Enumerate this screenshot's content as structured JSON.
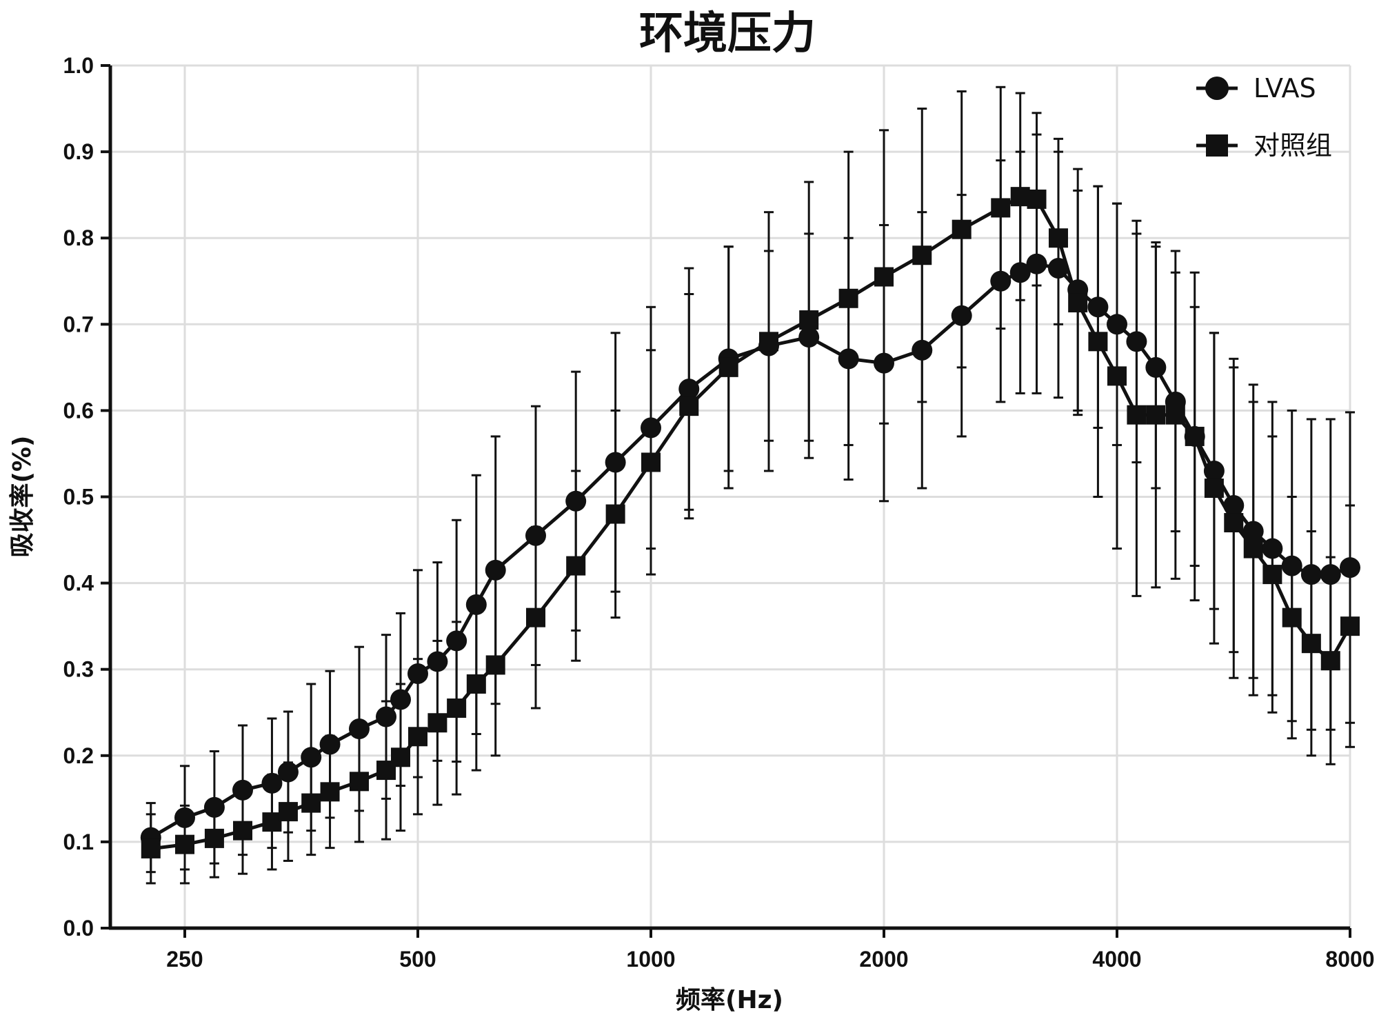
{
  "chart_data": {
    "type": "line",
    "title": "环境压力",
    "xlabel": "频率(Hz)",
    "ylabel": "吸收率(%)",
    "x_scale": "log2",
    "xlim": [
      220,
      8200
    ],
    "ylim": [
      0,
      1.0
    ],
    "x_ticks": [
      250,
      500,
      1000,
      2000,
      4000,
      8000
    ],
    "x_tick_labels": [
      "250",
      "500",
      "1000",
      "2000",
      "4000",
      "8000"
    ],
    "y_ticks": [
      0,
      0.1,
      0.2,
      0.3,
      0.4,
      0.5,
      0.6,
      0.7,
      0.8,
      0.9,
      1.0
    ],
    "y_tick_labels": [
      "0.0",
      "0.1",
      "0.2",
      "0.3",
      "0.4",
      "0.5",
      "0.6",
      "0.7",
      "0.8",
      "0.9",
      "1.0"
    ],
    "grid": true,
    "error_bars": true,
    "legend_position": "top-right",
    "series": [
      {
        "name": "LVAS",
        "marker": "circle",
        "color": "#111111",
        "x": [
          226,
          250,
          273,
          297,
          324,
          340,
          364,
          385,
          420,
          455,
          475,
          500,
          530,
          561,
          595,
          630,
          710,
          800,
          900,
          1000,
          1120,
          1260,
          1420,
          1600,
          1800,
          2000,
          2240,
          2520,
          2830,
          3000,
          3150,
          3360,
          3560,
          3780,
          4000,
          4240,
          4490,
          4760,
          5040,
          5340,
          5660,
          6000,
          6350,
          6730,
          7130,
          7550,
          8000
        ],
        "y": [
          0.105,
          0.128,
          0.14,
          0.16,
          0.168,
          0.181,
          0.198,
          0.213,
          0.231,
          0.245,
          0.265,
          0.295,
          0.309,
          0.333,
          0.375,
          0.415,
          0.455,
          0.495,
          0.54,
          0.58,
          0.625,
          0.66,
          0.675,
          0.685,
          0.66,
          0.655,
          0.67,
          0.71,
          0.75,
          0.76,
          0.77,
          0.765,
          0.74,
          0.72,
          0.7,
          0.68,
          0.65,
          0.61,
          0.57,
          0.53,
          0.49,
          0.46,
          0.44,
          0.42,
          0.41,
          0.41,
          0.418
        ],
        "error": [
          0.04,
          0.06,
          0.065,
          0.075,
          0.075,
          0.07,
          0.085,
          0.085,
          0.095,
          0.095,
          0.1,
          0.12,
          0.115,
          0.14,
          0.15,
          0.155,
          0.15,
          0.15,
          0.15,
          0.14,
          0.14,
          0.13,
          0.11,
          0.12,
          0.14,
          0.16,
          0.16,
          0.14,
          0.14,
          0.14,
          0.15,
          0.15,
          0.14,
          0.14,
          0.14,
          0.14,
          0.14,
          0.15,
          0.15,
          0.16,
          0.17,
          0.17,
          0.17,
          0.18,
          0.18,
          0.18,
          0.18
        ]
      },
      {
        "name": "对照组",
        "marker": "square",
        "color": "#111111",
        "x": [
          226,
          250,
          273,
          297,
          324,
          340,
          364,
          385,
          420,
          455,
          475,
          500,
          530,
          561,
          595,
          630,
          710,
          800,
          900,
          1000,
          1120,
          1260,
          1420,
          1600,
          1800,
          2000,
          2240,
          2520,
          2830,
          3000,
          3150,
          3360,
          3560,
          3780,
          4000,
          4240,
          4490,
          4760,
          5040,
          5340,
          5660,
          6000,
          6350,
          6730,
          7130,
          7550,
          8000
        ],
        "y": [
          0.092,
          0.097,
          0.104,
          0.113,
          0.123,
          0.135,
          0.145,
          0.158,
          0.17,
          0.183,
          0.198,
          0.222,
          0.238,
          0.255,
          0.283,
          0.305,
          0.36,
          0.42,
          0.48,
          0.54,
          0.605,
          0.65,
          0.68,
          0.705,
          0.73,
          0.755,
          0.78,
          0.81,
          0.835,
          0.848,
          0.845,
          0.8,
          0.725,
          0.68,
          0.64,
          0.595,
          0.595,
          0.595,
          0.57,
          0.51,
          0.47,
          0.44,
          0.41,
          0.36,
          0.33,
          0.31,
          0.35
        ],
        "error": [
          0.04,
          0.045,
          0.045,
          0.05,
          0.055,
          0.057,
          0.06,
          0.065,
          0.07,
          0.08,
          0.085,
          0.09,
          0.095,
          0.1,
          0.1,
          0.105,
          0.105,
          0.11,
          0.12,
          0.13,
          0.13,
          0.14,
          0.15,
          0.16,
          0.17,
          0.17,
          0.17,
          0.16,
          0.14,
          0.12,
          0.1,
          0.1,
          0.13,
          0.18,
          0.2,
          0.21,
          0.2,
          0.19,
          0.19,
          0.18,
          0.18,
          0.17,
          0.16,
          0.14,
          0.13,
          0.12,
          0.14
        ]
      }
    ]
  }
}
